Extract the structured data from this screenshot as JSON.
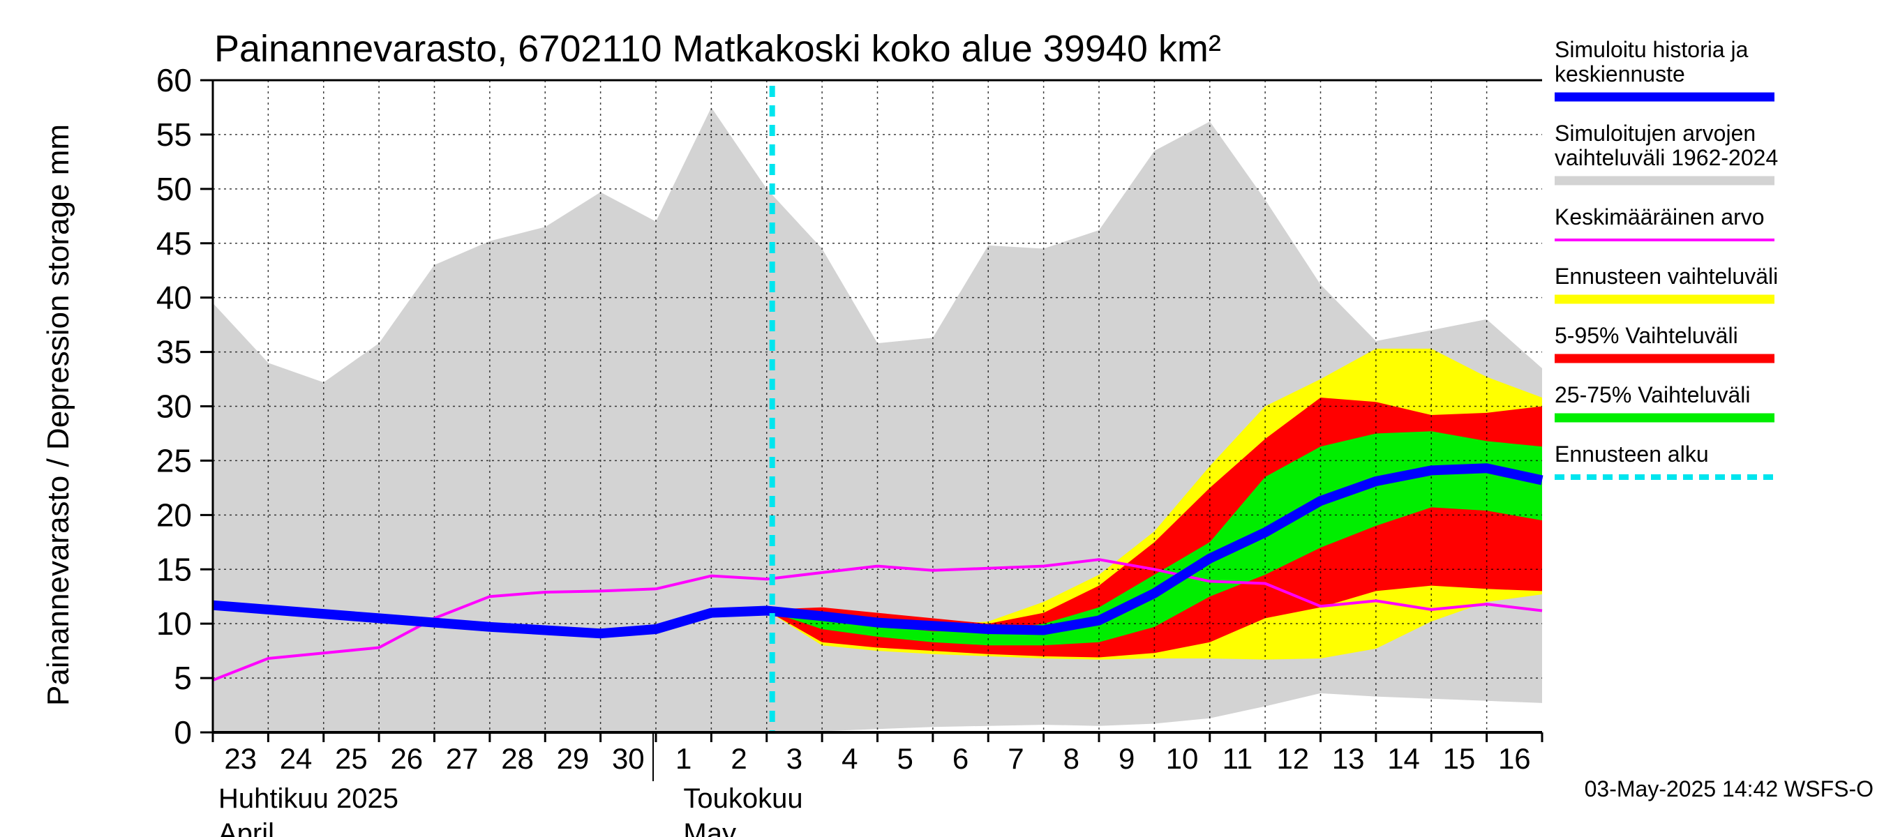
{
  "chart_data": {
    "type": "area",
    "title": "Painannevarasto, 6702110 Matkakoski koko alue 39940 km²",
    "ylabel": "Painannevarasto / Depression storage    mm",
    "ylim": [
      0,
      60
    ],
    "yticks": [
      0,
      5,
      10,
      15,
      20,
      25,
      30,
      35,
      40,
      45,
      50,
      55,
      60
    ],
    "x": [
      "23",
      "24",
      "25",
      "26",
      "27",
      "28",
      "29",
      "30",
      "1",
      "2",
      "3",
      "4",
      "5",
      "6",
      "7",
      "8",
      "9",
      "10",
      "11",
      "12",
      "13",
      "14",
      "15",
      "16",
      "17"
    ],
    "x_tick_labels": [
      "23",
      "24",
      "25",
      "26",
      "27",
      "28",
      "29",
      "30",
      "1",
      "2",
      "3",
      "4",
      "5",
      "6",
      "7",
      "8",
      "9",
      "10",
      "11",
      "12",
      "13",
      "14",
      "15",
      "16"
    ],
    "month_labels": [
      {
        "line1": "Huhtikuu  2025",
        "line2": "April"
      },
      {
        "line1": "Toukokuu",
        "line2": "May"
      }
    ],
    "forecast_start_index": 10.1,
    "series": [
      {
        "name": "Simuloitujen arvojen vaihteluväli 1962-2024",
        "type": "band",
        "color": "#d3d3d3",
        "upper": [
          39.5,
          34,
          32.2,
          35.8,
          43,
          45.2,
          46.5,
          49.7,
          47,
          57.5,
          50,
          44.5,
          35.8,
          36.3,
          44.8,
          44.5,
          46.2,
          53.5,
          56.2,
          49,
          41.2,
          36,
          37,
          38,
          33.5
        ],
        "lower": [
          0,
          0,
          0,
          0,
          0,
          0,
          0,
          0,
          0,
          0,
          0,
          0.1,
          0.3,
          0.5,
          0.6,
          0.7,
          0.6,
          0.8,
          1.3,
          2.4,
          3.6,
          3.3,
          3.1,
          2.9,
          2.7
        ]
      },
      {
        "name": "Ennusteen vaihteluväli",
        "type": "band",
        "color": "#ffff00",
        "start": 10,
        "upper": [
          null,
          null,
          null,
          null,
          null,
          null,
          null,
          null,
          null,
          null,
          11.3,
          10.8,
          10.3,
          9.8,
          10.2,
          12,
          14.5,
          18.5,
          24.5,
          30,
          32.5,
          35.3,
          35.3,
          32.7,
          30.8
        ],
        "lower": [
          null,
          null,
          null,
          null,
          null,
          null,
          null,
          null,
          null,
          null,
          11.2,
          8,
          7.5,
          7.2,
          7,
          6.8,
          6.7,
          6.8,
          6.8,
          6.7,
          6.8,
          7.7,
          10.2,
          12,
          12.7
        ]
      },
      {
        "name": "5-95% Vaihteluväli",
        "type": "band",
        "color": "#ff0000",
        "start": 10,
        "upper": [
          null,
          null,
          null,
          null,
          null,
          null,
          null,
          null,
          null,
          null,
          11.3,
          11.5,
          11,
          10.5,
          10,
          11,
          13.5,
          17.5,
          22.5,
          27,
          30.8,
          30.4,
          29.2,
          29.4,
          30
        ],
        "lower": [
          null,
          null,
          null,
          null,
          null,
          null,
          null,
          null,
          null,
          null,
          11.2,
          8.3,
          7.8,
          7.5,
          7.2,
          7,
          6.9,
          7.3,
          8.3,
          10.5,
          11.5,
          13,
          13.5,
          13.2,
          13
        ]
      },
      {
        "name": "25-75% Vaihteluväli",
        "type": "band",
        "color": "#00ee00",
        "start": 10,
        "upper": [
          null,
          null,
          null,
          null,
          null,
          null,
          null,
          null,
          null,
          null,
          11.3,
          10.3,
          9.8,
          9.3,
          9.3,
          10,
          11.5,
          14.5,
          17.5,
          23.5,
          26.3,
          27.5,
          27.7,
          26.8,
          26.3
        ],
        "lower": [
          null,
          null,
          null,
          null,
          null,
          null,
          null,
          null,
          null,
          null,
          11.2,
          9.5,
          8.8,
          8.3,
          8,
          8,
          8.3,
          9.7,
          12.5,
          14.5,
          17,
          19,
          20.7,
          20.4,
          19.5
        ]
      },
      {
        "name": "Keskimääräinen arvo",
        "type": "line",
        "color": "#ff00ff",
        "values": [
          4.8,
          6.8,
          7.3,
          7.8,
          10.5,
          12.5,
          12.9,
          13,
          13.2,
          14.4,
          14.1,
          14.7,
          15.3,
          14.9,
          15.1,
          15.3,
          15.9,
          15,
          13.9,
          13.7,
          11.6,
          12.1,
          11.3,
          11.8,
          11.2
        ]
      },
      {
        "name": "Simuloitu historia ja keskiennuste",
        "type": "line",
        "color": "#0000ff",
        "values": [
          11.7,
          11.3,
          10.9,
          10.5,
          10.1,
          9.7,
          9.4,
          9.1,
          9.5,
          11,
          11.2,
          10.7,
          10.1,
          9.8,
          9.5,
          9.4,
          10.3,
          12.8,
          16,
          18.4,
          21.3,
          23.1,
          24.1,
          24.3,
          23.2
        ]
      }
    ],
    "legend": [
      {
        "label": "Simuloitu historia ja\nkeskiennuste",
        "color": "#0000ff",
        "style": "solid"
      },
      {
        "label": "Simuloitujen arvojen\nvaihteluväli 1962-2024",
        "color": "#d3d3d3",
        "style": "solid"
      },
      {
        "label": "Keskimääräinen arvo",
        "color": "#ff00ff",
        "style": "thin"
      },
      {
        "label": "Ennusteen vaihteluväli",
        "color": "#ffff00",
        "style": "solid"
      },
      {
        "label": "5-95% Vaihteluväli",
        "color": "#ff0000",
        "style": "solid"
      },
      {
        "label": "25-75% Vaihteluväli",
        "color": "#00ee00",
        "style": "solid"
      },
      {
        "label": "Ennusteen alku",
        "color": "#00e5ee",
        "style": "dashed"
      }
    ],
    "legend_position": "right",
    "grid": true,
    "timestamp": "03-May-2025 14:42 WSFS-O"
  }
}
